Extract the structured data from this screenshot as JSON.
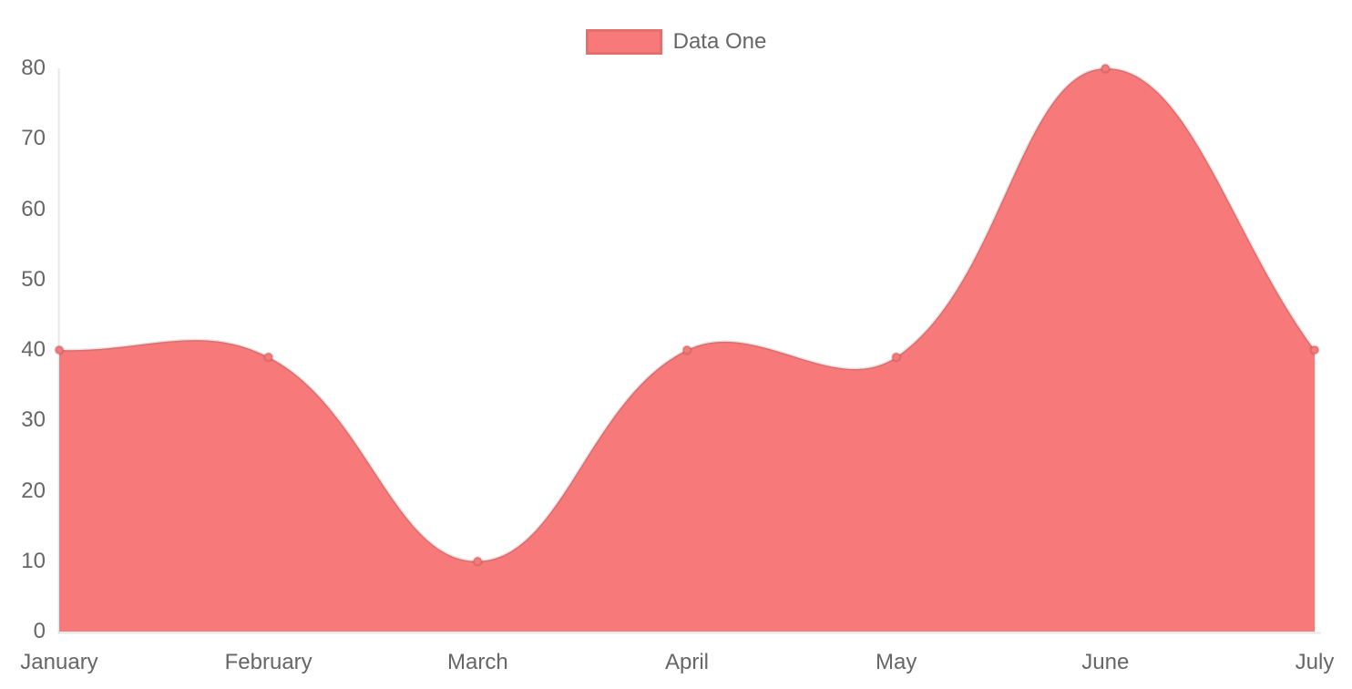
{
  "chart_data": {
    "type": "area",
    "title": "",
    "xlabel": "",
    "ylabel": "",
    "categories": [
      "January",
      "February",
      "March",
      "April",
      "May",
      "June",
      "July"
    ],
    "series": [
      {
        "name": "Data One",
        "values": [
          40,
          39,
          10,
          40,
          39,
          80,
          40
        ]
      }
    ],
    "ylim": [
      0,
      80
    ],
    "y_ticks": [
      0,
      10,
      20,
      30,
      40,
      50,
      60,
      70,
      80
    ],
    "grid": false,
    "legend_position": "top",
    "line_tension": 0.4,
    "colors": {
      "fill": "#f87979",
      "point_fill": "#f87979",
      "line_stroke": "rgba(0,0,0,0.1)",
      "axis_line": "rgba(0,0,0,0.09)",
      "tick_text": "#666666"
    }
  }
}
